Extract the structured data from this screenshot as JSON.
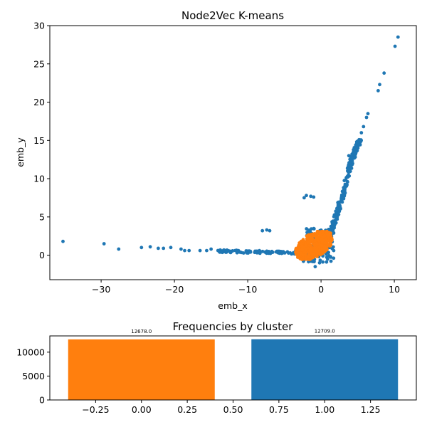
{
  "chart_data": [
    {
      "type": "scatter",
      "title": "Node2Vec K-means",
      "xlabel": "emb_x",
      "ylabel": "emb_y",
      "xlim": [
        -37,
        13
      ],
      "ylim": [
        -3.2,
        30
      ],
      "xticks": [
        -30,
        -20,
        -10,
        0,
        10
      ],
      "yticks": [
        0,
        5,
        10,
        15,
        20,
        25,
        30
      ],
      "colors": [
        "#ff7f0e",
        "#1f77b4"
      ],
      "series": [
        {
          "cluster": 1,
          "color": "#1f77b4",
          "points": [
            [
              -35.2,
              1.8
            ],
            [
              -29.6,
              1.5
            ],
            [
              -27.6,
              0.8
            ],
            [
              -24.5,
              1.0
            ],
            [
              -23.3,
              1.1
            ],
            [
              -22.2,
              0.9
            ],
            [
              -21.5,
              0.9
            ],
            [
              -20.5,
              1.0
            ],
            [
              -19.1,
              0.8
            ],
            [
              -18.6,
              0.6
            ],
            [
              -18.0,
              0.6
            ],
            [
              -16.5,
              0.6
            ],
            [
              -15.6,
              0.6
            ],
            [
              -15.0,
              0.8
            ],
            [
              -8.0,
              3.2
            ],
            [
              -7.4,
              3.3
            ],
            [
              -7.0,
              3.2
            ],
            [
              -2.3,
              7.5
            ],
            [
              -2.0,
              7.8
            ],
            [
              -1.4,
              7.7
            ],
            [
              -1.0,
              7.6
            ],
            [
              -2.4,
              -0.8
            ],
            [
              -0.8,
              -1.5
            ],
            [
              -0.2,
              -1.0
            ],
            [
              -1.4,
              -0.6
            ],
            [
              -4.2,
              0.3
            ],
            [
              -3.5,
              0.5
            ],
            [
              -3.0,
              0.0
            ],
            [
              -2.5,
              0.2
            ],
            [
              -1.8,
              -0.2
            ],
            [
              0.9,
              -0.5
            ],
            [
              1.3,
              -0.2
            ],
            [
              3.8,
              13.0
            ],
            [
              4.0,
              12.5
            ],
            [
              5.5,
              16.0
            ],
            [
              5.8,
              16.8
            ],
            [
              6.2,
              18.0
            ],
            [
              6.4,
              18.5
            ],
            [
              7.8,
              21.5
            ],
            [
              8.0,
              22.3
            ],
            [
              8.6,
              23.8
            ],
            [
              10.1,
              27.3
            ],
            [
              10.5,
              28.5
            ]
          ],
          "band": [
            [
              -14,
              0.55
            ],
            [
              -12,
              0.5
            ],
            [
              -10,
              0.45
            ],
            [
              -8,
              0.4
            ],
            [
              -6,
              0.35
            ],
            [
              -4,
              0.3
            ],
            [
              -2,
              0.4
            ],
            [
              0,
              1.4
            ],
            [
              0.8,
              2.4
            ],
            [
              1.5,
              3.5
            ],
            [
              2.0,
              5.0
            ],
            [
              2.5,
              6.5
            ],
            [
              3.0,
              8.0
            ],
            [
              3.5,
              10.0
            ],
            [
              4.0,
              11.8
            ],
            [
              4.5,
              13.2
            ],
            [
              5.0,
              14.5
            ],
            [
              5.5,
              15.2
            ]
          ],
          "band_noise": [
            0.6,
            0.35
          ],
          "band_points": 420,
          "cloud": {
            "x": [
              -2.0,
              1.8
            ],
            "y": [
              -0.9,
              3.6
            ],
            "points": 140
          }
        },
        {
          "cluster": 0,
          "color": "#ff7f0e",
          "points": [],
          "cloud": {
            "x": [
              -3.5,
              1.6
            ],
            "y": [
              -0.4,
              3.0
            ],
            "points": 420
          }
        }
      ]
    },
    {
      "type": "bar",
      "title": "Frequencies by cluster",
      "categories": [
        0,
        1
      ],
      "values": [
        12678.0,
        12709.0
      ],
      "value_labels": [
        "12678.0",
        "12709.0"
      ],
      "colors": [
        "#ff7f0e",
        "#1f77b4"
      ],
      "bar_width": 0.8,
      "xlim": [
        -0.5,
        1.5
      ],
      "ylim": [
        0,
        13400
      ],
      "xticks": [
        "-0.25",
        "0.00",
        "0.25",
        "0.50",
        "0.75",
        "1.00",
        "1.25"
      ],
      "xtick_values": [
        -0.25,
        0,
        0.25,
        0.5,
        0.75,
        1.0,
        1.25
      ],
      "yticks": [
        0,
        5000,
        10000
      ]
    }
  ]
}
